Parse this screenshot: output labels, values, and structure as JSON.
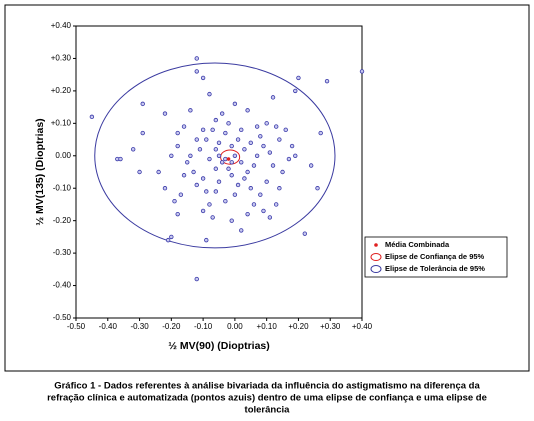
{
  "chart_data": {
    "type": "scatter",
    "xlabel": "½ MV(90) (Dioptrias)",
    "ylabel": "½ MV(135) (Dioptrias)",
    "caption": [
      "Gráfico 1 - Dados referentes à análise bivariada da influência do astigmatismo na diferença da",
      "refração clínica e automatizada (pontos azuis) dentro de uma elipse de confiança e uma elipse de",
      "tolerância"
    ],
    "xlim": [
      -0.5,
      0.4
    ],
    "ylim": [
      -0.5,
      0.4
    ],
    "xticks": [
      {
        "value": -0.5,
        "label": "-0.50"
      },
      {
        "value": -0.4,
        "label": "-0.40"
      },
      {
        "value": -0.3,
        "label": "-0.30"
      },
      {
        "value": -0.2,
        "label": "-0.20"
      },
      {
        "value": -0.1,
        "label": "-0.10"
      },
      {
        "value": 0,
        "label": "0.00"
      },
      {
        "value": 0.1,
        "label": "+0.10"
      },
      {
        "value": 0.2,
        "label": "+0.20"
      },
      {
        "value": 0.3,
        "label": "+0.30"
      },
      {
        "value": 0.4,
        "label": "+0.40"
      }
    ],
    "yticks": [
      {
        "value": 0.4,
        "label": "+0.40"
      },
      {
        "value": 0.3,
        "label": "+0.30"
      },
      {
        "value": 0.2,
        "label": "+0.20"
      },
      {
        "value": 0.1,
        "label": "+0.10"
      },
      {
        "value": 0,
        "label": "0.00"
      },
      {
        "value": -0.1,
        "label": "-0.10"
      },
      {
        "value": -0.2,
        "label": "-0.20"
      },
      {
        "value": -0.3,
        "label": "-0.30"
      },
      {
        "value": -0.4,
        "label": "-0.40"
      },
      {
        "value": -0.5,
        "label": "-0.50"
      }
    ],
    "grid": false,
    "points": {
      "color": "#3838a8",
      "x": [
        -0.45,
        -0.37,
        -0.36,
        -0.29,
        -0.29,
        -0.3,
        -0.32,
        -0.22,
        -0.21,
        -0.2,
        -0.12,
        -0.12,
        -0.09,
        -0.12,
        -0.1,
        0.2,
        0.29,
        0.4,
        0.27,
        0.26,
        0.24,
        0.22,
        0.19,
        0.12,
        0.13,
        0.11,
        0.02,
        -0.01,
        0.04,
        -0.18,
        -0.17,
        -0.19,
        -0.24,
        -0.2,
        -0.18,
        -0.16,
        -0.14,
        -0.08,
        -0.06,
        0.04,
        0.07,
        0.1,
        0.14,
        0.16,
        0.18,
        0.19,
        0.15,
        0.17,
        0.12,
        0.1,
        0.08,
        0.05,
        0.03,
        0.0,
        -0.03,
        -0.06,
        -0.08,
        -0.1,
        -0.12,
        -0.1,
        -0.13,
        -0.15,
        -0.11,
        -0.09,
        -0.07,
        -0.05,
        -0.03,
        -0.01,
        0.01,
        0.03,
        0.05,
        0.07,
        0.09,
        0.06,
        0.02,
        -0.02,
        -0.04,
        -0.06,
        -0.08,
        -0.1,
        -0.12,
        -0.14,
        -0.16,
        -0.05,
        -0.01,
        0.01,
        0.04,
        0.08,
        0.11,
        0.13,
        -0.02,
        -0.04,
        0.0,
        -0.06,
        -0.03,
        -0.01,
        0.0,
        -0.05,
        0.02,
        -0.09,
        -0.07,
        0.06,
        0.09,
        0.14,
        -0.18,
        -0.22
      ],
      "y": [
        0.12,
        -0.01,
        -0.01,
        0.16,
        0.07,
        -0.05,
        0.02,
        0.13,
        -0.26,
        -0.25,
        0.3,
        0.26,
        -0.26,
        -0.38,
        0.24,
        0.24,
        0.23,
        0.26,
        0.07,
        -0.1,
        -0.03,
        -0.24,
        0.2,
        0.18,
        -0.15,
        -0.19,
        -0.23,
        -0.2,
        -0.18,
        -0.18,
        -0.12,
        -0.14,
        -0.05,
        0.0,
        0.07,
        0.09,
        0.14,
        0.19,
        0.11,
        0.14,
        0.09,
        0.1,
        0.05,
        0.08,
        0.03,
        0.0,
        -0.05,
        -0.01,
        -0.03,
        -0.08,
        -0.12,
        -0.1,
        -0.07,
        -0.12,
        -0.14,
        -0.11,
        -0.15,
        -0.17,
        -0.09,
        -0.07,
        -0.05,
        -0.02,
        0.02,
        0.05,
        0.08,
        0.04,
        0.07,
        0.03,
        0.05,
        0.02,
        0.04,
        0.0,
        0.03,
        -0.03,
        -0.02,
        -0.04,
        -0.02,
        -0.04,
        -0.01,
        0.08,
        0.05,
        0.0,
        -0.06,
        -0.08,
        -0.06,
        -0.09,
        -0.05,
        0.06,
        0.01,
        0.09,
        0.1,
        0.13,
        0.16,
        0.02,
        -0.01,
        -0.02,
        0.0,
        0.0,
        0.08,
        -0.11,
        -0.19,
        -0.15,
        -0.17,
        -0.1,
        0.03,
        -0.1
      ]
    },
    "mean": {
      "name": "Média Combinada",
      "color": "#e02020",
      "x": -0.02,
      "y": -0.01
    },
    "ellipses": [
      {
        "name": "Elipse de Confiança de 95%",
        "color": "#e02020",
        "cx": -0.015,
        "cy": -0.004,
        "rx": 0.03,
        "ry": 0.022
      },
      {
        "name": "Elipse de Tolerância de 95%",
        "color": "#3a3aa0",
        "cx": -0.063,
        "cy": 0.001,
        "rx": 0.378,
        "ry": 0.285
      }
    ]
  }
}
